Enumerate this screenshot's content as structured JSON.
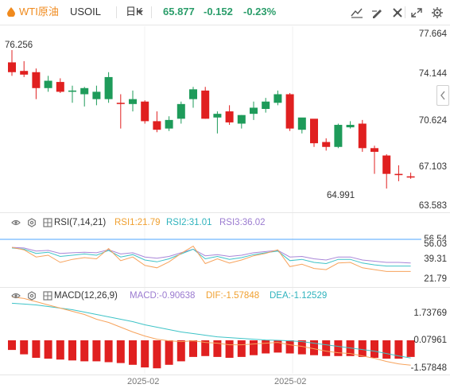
{
  "toolbar": {
    "symbol_name": "WTI原油",
    "symbol_code": "USOIL",
    "period": "日K",
    "last_price": "65.877",
    "change": "-0.152",
    "change_pct": "-0.23%",
    "buttons": [
      "indicator-icon",
      "draw-icon",
      "tools-icon",
      "expand-icon",
      "settings-icon"
    ]
  },
  "main_axis": {
    "labels": [
      "77.664",
      "74.144",
      "70.624",
      "67.103",
      "63.583"
    ],
    "label_color": "#e43b3b"
  },
  "price_annotations": {
    "high": "76.256",
    "low": "64.991"
  },
  "colors": {
    "up": "#1e9b5a",
    "down": "#e02020",
    "ma": "#f7a35c",
    "rsi1": "#f7a35c",
    "rsi2": "#3ec3c7",
    "rsi3": "#a986d8",
    "refline": "#4da6ff",
    "macd_bar": "#e02020"
  },
  "candles": [
    {
      "o": 75.3,
      "h": 76.3,
      "l": 74.2,
      "c": 74.5
    },
    {
      "o": 74.6,
      "h": 75.4,
      "l": 74.1,
      "c": 74.3
    },
    {
      "o": 74.5,
      "h": 74.8,
      "l": 72.3,
      "c": 73.2
    },
    {
      "o": 73.2,
      "h": 74.2,
      "l": 72.9,
      "c": 73.8
    },
    {
      "o": 73.7,
      "h": 74.0,
      "l": 72.8,
      "c": 72.9
    },
    {
      "o": 72.9,
      "h": 73.4,
      "l": 72.0,
      "c": 73.0
    },
    {
      "o": 72.7,
      "h": 73.3,
      "l": 71.7,
      "c": 73.2
    },
    {
      "o": 72.3,
      "h": 73.4,
      "l": 71.8,
      "c": 72.9
    },
    {
      "o": 72.3,
      "h": 74.5,
      "l": 72.0,
      "c": 74.1
    },
    {
      "o": 72.0,
      "h": 72.7,
      "l": 69.9,
      "c": 71.9
    },
    {
      "o": 71.9,
      "h": 73.0,
      "l": 71.3,
      "c": 72.3
    },
    {
      "o": 72.1,
      "h": 72.2,
      "l": 70.3,
      "c": 70.5
    },
    {
      "o": 70.5,
      "h": 71.3,
      "l": 69.6,
      "c": 69.8
    },
    {
      "o": 69.9,
      "h": 70.9,
      "l": 69.7,
      "c": 70.6
    },
    {
      "o": 70.7,
      "h": 72.1,
      "l": 70.3,
      "c": 71.9
    },
    {
      "o": 72.3,
      "h": 73.3,
      "l": 71.6,
      "c": 73.1
    },
    {
      "o": 73.0,
      "h": 73.3,
      "l": 70.7,
      "c": 70.7
    },
    {
      "o": 70.8,
      "h": 71.3,
      "l": 69.5,
      "c": 71.1
    },
    {
      "o": 71.3,
      "h": 71.8,
      "l": 70.2,
      "c": 70.4
    },
    {
      "o": 70.3,
      "h": 71.0,
      "l": 69.9,
      "c": 71.0
    },
    {
      "o": 71.1,
      "h": 72.1,
      "l": 70.6,
      "c": 71.6
    },
    {
      "o": 71.5,
      "h": 72.4,
      "l": 71.2,
      "c": 72.1
    },
    {
      "o": 72.0,
      "h": 73.0,
      "l": 71.8,
      "c": 72.7
    },
    {
      "o": 72.7,
      "h": 72.8,
      "l": 69.7,
      "c": 69.9
    },
    {
      "o": 69.8,
      "h": 70.7,
      "l": 69.5,
      "c": 70.8
    },
    {
      "o": 70.7,
      "h": 70.6,
      "l": 68.4,
      "c": 68.7
    },
    {
      "o": 68.8,
      "h": 69.1,
      "l": 68.1,
      "c": 68.4
    },
    {
      "o": 68.4,
      "h": 70.3,
      "l": 68.3,
      "c": 70.2
    },
    {
      "o": 70.0,
      "h": 70.5,
      "l": 69.9,
      "c": 70.2
    },
    {
      "o": 70.3,
      "h": 70.6,
      "l": 68.0,
      "c": 68.3
    },
    {
      "o": 68.3,
      "h": 68.5,
      "l": 66.2,
      "c": 68.0
    },
    {
      "o": 67.7,
      "h": 67.8,
      "l": 65.0,
      "c": 66.2
    },
    {
      "o": 66.2,
      "h": 66.9,
      "l": 65.6,
      "c": 66.1
    },
    {
      "o": 66.0,
      "h": 66.3,
      "l": 65.8,
      "c": 65.9
    }
  ],
  "rsi": {
    "label": "RSI(7,14,21)",
    "rsi1_label": "RSI1:21.79",
    "rsi2_label": "RSI2:31.01",
    "rsi3_label": "RSI3:36.02",
    "axis_labels": [
      "56.54",
      "56.03",
      "39.31",
      "21.79"
    ],
    "rsi1": [
      62,
      58,
      46,
      49,
      37,
      42,
      45,
      43,
      60,
      40,
      46,
      32,
      28,
      38,
      52,
      64,
      35,
      43,
      36,
      41,
      48,
      52,
      58,
      30,
      34,
      27,
      25,
      36,
      37,
      28,
      25,
      22,
      22,
      22
    ],
    "rsi2": [
      61,
      59,
      52,
      54,
      47,
      49,
      51,
      49,
      57,
      46,
      50,
      41,
      38,
      43,
      51,
      59,
      43,
      47,
      42,
      45,
      50,
      53,
      56,
      40,
      42,
      37,
      35,
      42,
      42,
      36,
      33,
      31,
      31,
      31
    ],
    "rsi3": [
      62,
      61,
      56,
      57,
      52,
      53,
      54,
      53,
      58,
      51,
      53,
      46,
      44,
      47,
      53,
      59,
      48,
      50,
      47,
      49,
      53,
      55,
      57,
      46,
      47,
      43,
      41,
      46,
      46,
      41,
      39,
      37,
      37,
      36
    ]
  },
  "macd": {
    "label": "MACD(12,26,9)",
    "macd_label": "MACD:-0.90638",
    "dif_label": "DIF:-1.57848",
    "dea_label": "DEA:-1.12529",
    "axis_labels": [
      "1.73769",
      "0.07961",
      "-1.57848"
    ],
    "bars": [
      -0.55,
      -0.8,
      -1.0,
      -1.05,
      -1.1,
      -1.15,
      -1.2,
      -1.2,
      -1.25,
      -1.3,
      -1.4,
      -1.55,
      -1.6,
      -1.4,
      -1.2,
      -0.95,
      -0.9,
      -0.95,
      -1.0,
      -0.95,
      -0.85,
      -0.75,
      -0.7,
      -0.75,
      -0.8,
      -0.85,
      -0.9,
      -0.9,
      -0.9,
      -0.95,
      -1.0,
      -1.05,
      -1.05,
      -0.95
    ],
    "dif": [
      2.7,
      2.6,
      2.4,
      2.2,
      2.0,
      1.8,
      1.6,
      1.3,
      1.1,
      0.8,
      0.5,
      0.25,
      0.05,
      -0.05,
      -0.1,
      -0.05,
      -0.15,
      -0.2,
      -0.3,
      -0.3,
      -0.25,
      -0.2,
      -0.15,
      -0.3,
      -0.4,
      -0.55,
      -0.7,
      -0.8,
      -0.85,
      -1.0,
      -1.15,
      -1.35,
      -1.5,
      -1.58
    ],
    "dea": [
      2.3,
      2.25,
      2.2,
      2.1,
      2.0,
      1.9,
      1.75,
      1.6,
      1.45,
      1.3,
      1.15,
      0.95,
      0.8,
      0.65,
      0.5,
      0.4,
      0.3,
      0.2,
      0.15,
      0.1,
      0.05,
      0.0,
      -0.02,
      -0.05,
      -0.1,
      -0.2,
      -0.3,
      -0.4,
      -0.5,
      -0.6,
      -0.7,
      -0.85,
      -1.0,
      -1.13
    ]
  },
  "date_labels": [
    "2025-02",
    "2025-02"
  ]
}
